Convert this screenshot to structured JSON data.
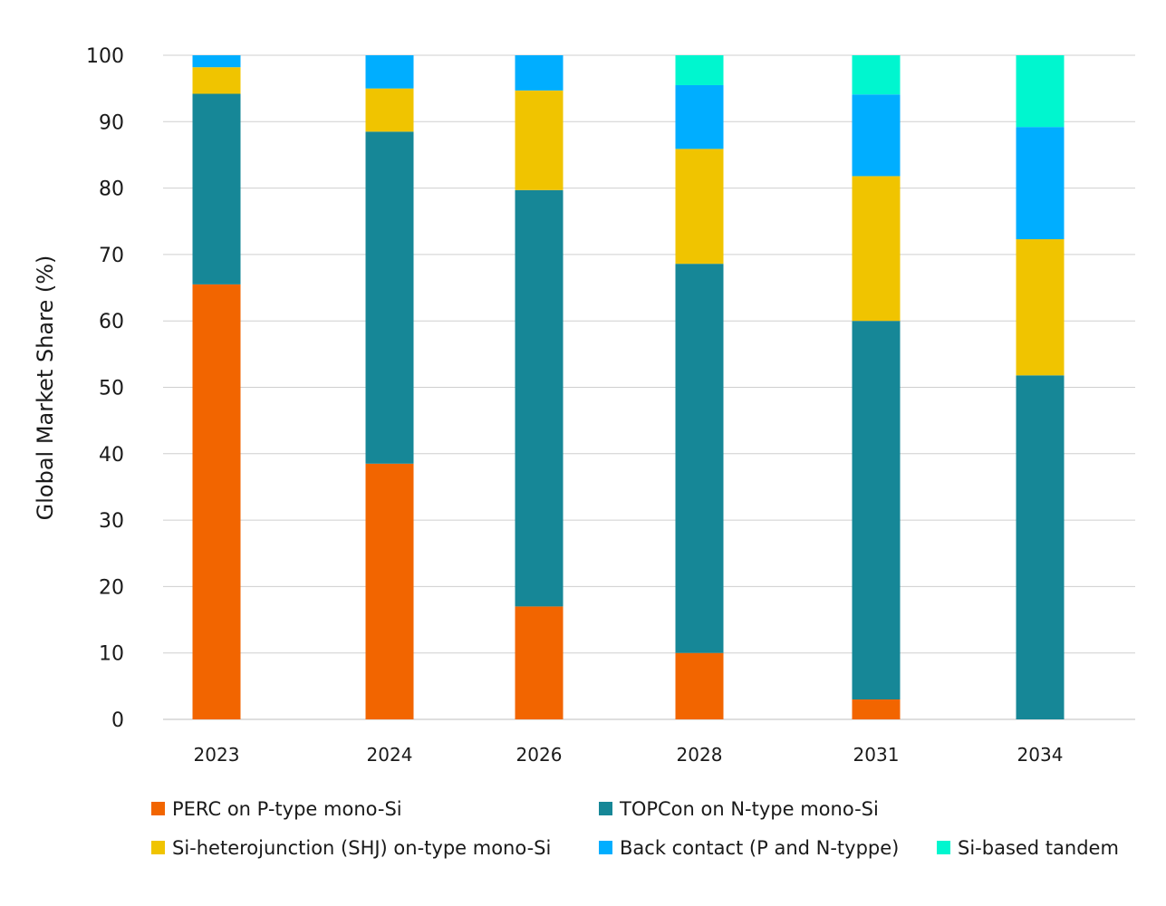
{
  "chart_data": {
    "type": "bar",
    "stacked": true,
    "title": "",
    "xlabel": "",
    "ylabel": "Global Market Share (%)",
    "ylim": [
      0,
      100
    ],
    "yticks": [
      0,
      10,
      20,
      30,
      40,
      50,
      60,
      70,
      80,
      90,
      100
    ],
    "grid": true,
    "categories": [
      "2023",
      "2024",
      "2026",
      "2028",
      "2031",
      "2034"
    ],
    "series": [
      {
        "name": "PERC on P-type mono-Si",
        "color": "#f26500",
        "values": [
          65.5,
          38.5,
          17,
          10,
          3,
          0
        ]
      },
      {
        "name": "TOPCon on N-type mono-Si",
        "color": "#168797",
        "values": [
          28.7,
          50,
          62.7,
          58.6,
          57,
          51.8
        ]
      },
      {
        "name": "Si-heterojunction (SHJ) on-type mono-Si",
        "color": "#f0c400",
        "values": [
          4,
          6.5,
          15,
          17.3,
          21.8,
          20.5
        ]
      },
      {
        "name": "Back contact (P and N-typpe)",
        "color": "#00aeff",
        "values": [
          1.8,
          5,
          5.3,
          9.6,
          12.3,
          16.9
        ]
      },
      {
        "name": "Si-based tandem",
        "color": "#00f6cf",
        "values": [
          0,
          0,
          0,
          4.5,
          5.9,
          10.8
        ]
      }
    ],
    "legend_position": "bottom"
  }
}
